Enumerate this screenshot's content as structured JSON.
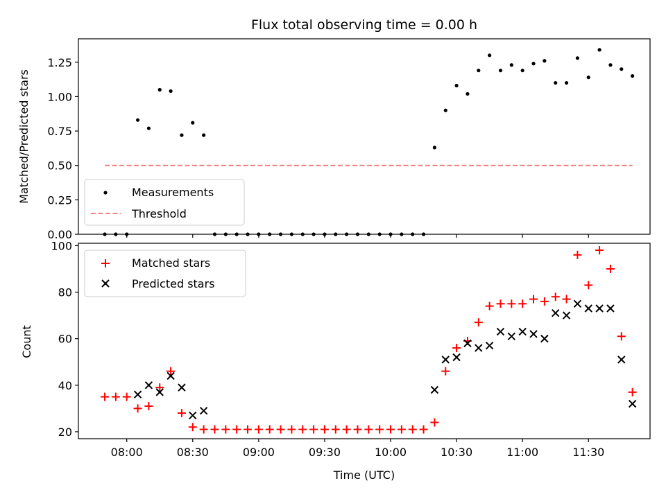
{
  "chart_data": [
    {
      "type": "scatter",
      "title": "Flux total observing time = 0.00 h",
      "xlabel": "",
      "ylabel": "Matched/Predicted stars",
      "ylim": [
        0,
        1.42
      ],
      "yticks": [
        "0.00",
        "0.25",
        "0.50",
        "0.75",
        "1.00",
        "1.25"
      ],
      "legend_position": "lower-left",
      "series": [
        {
          "name": "Measurements",
          "color": "#000000",
          "marker": "dot",
          "points": [
            [
              "07:50",
              0.0
            ],
            [
              "07:55",
              0.0
            ],
            [
              "08:00",
              0.0
            ],
            [
              "08:05",
              0.83
            ],
            [
              "08:10",
              0.77
            ],
            [
              "08:15",
              1.05
            ],
            [
              "08:20",
              1.04
            ],
            [
              "08:25",
              0.72
            ],
            [
              "08:30",
              0.81
            ],
            [
              "08:35",
              0.72
            ],
            [
              "08:40",
              0.0
            ],
            [
              "08:45",
              0.0
            ],
            [
              "08:50",
              0.0
            ],
            [
              "08:55",
              0.0
            ],
            [
              "09:00",
              0.0
            ],
            [
              "09:05",
              0.0
            ],
            [
              "09:10",
              0.0
            ],
            [
              "09:15",
              0.0
            ],
            [
              "09:20",
              0.0
            ],
            [
              "09:25",
              0.0
            ],
            [
              "09:30",
              0.0
            ],
            [
              "09:35",
              0.0
            ],
            [
              "09:40",
              0.0
            ],
            [
              "09:45",
              0.0
            ],
            [
              "09:50",
              0.0
            ],
            [
              "09:55",
              0.0
            ],
            [
              "10:00",
              0.0
            ],
            [
              "10:05",
              0.0
            ],
            [
              "10:10",
              0.0
            ],
            [
              "10:15",
              0.0
            ],
            [
              "10:20",
              0.63
            ],
            [
              "10:25",
              0.9
            ],
            [
              "10:30",
              1.08
            ],
            [
              "10:35",
              1.02
            ],
            [
              "10:40",
              1.19
            ],
            [
              "10:45",
              1.3
            ],
            [
              "10:50",
              1.19
            ],
            [
              "10:55",
              1.23
            ],
            [
              "11:00",
              1.19
            ],
            [
              "11:05",
              1.24
            ],
            [
              "11:10",
              1.26
            ],
            [
              "11:15",
              1.1
            ],
            [
              "11:20",
              1.1
            ],
            [
              "11:25",
              1.28
            ],
            [
              "11:30",
              1.14
            ],
            [
              "11:35",
              1.34
            ],
            [
              "11:40",
              1.23
            ],
            [
              "11:45",
              1.2
            ],
            [
              "11:50",
              1.15
            ]
          ]
        },
        {
          "name": "Threshold",
          "color": "#f08080",
          "marker": "dashed-line",
          "points": [
            [
              "07:50",
              0.5
            ],
            [
              "11:50",
              0.5
            ]
          ]
        }
      ]
    },
    {
      "type": "scatter",
      "title": "",
      "xlabel": "Time (UTC)",
      "ylabel": "Count",
      "ylim": [
        17,
        101
      ],
      "yticks": [
        "20",
        "40",
        "60",
        "80",
        "100"
      ],
      "xticks": [
        "08:00",
        "08:30",
        "09:00",
        "09:30",
        "10:00",
        "10:30",
        "11:00",
        "11:30"
      ],
      "legend_position": "upper-left",
      "series": [
        {
          "name": "Matched stars",
          "color": "#ff0000",
          "marker": "plus",
          "points": [
            [
              "07:50",
              35
            ],
            [
              "07:55",
              35
            ],
            [
              "08:00",
              35
            ],
            [
              "08:05",
              30
            ],
            [
              "08:10",
              31
            ],
            [
              "08:15",
              39
            ],
            [
              "08:20",
              46
            ],
            [
              "08:25",
              28
            ],
            [
              "08:30",
              22
            ],
            [
              "08:35",
              21
            ],
            [
              "08:40",
              21
            ],
            [
              "08:45",
              21
            ],
            [
              "08:50",
              21
            ],
            [
              "08:55",
              21
            ],
            [
              "09:00",
              21
            ],
            [
              "09:05",
              21
            ],
            [
              "09:10",
              21
            ],
            [
              "09:15",
              21
            ],
            [
              "09:20",
              21
            ],
            [
              "09:25",
              21
            ],
            [
              "09:30",
              21
            ],
            [
              "09:35",
              21
            ],
            [
              "09:40",
              21
            ],
            [
              "09:45",
              21
            ],
            [
              "09:50",
              21
            ],
            [
              "09:55",
              21
            ],
            [
              "10:00",
              21
            ],
            [
              "10:05",
              21
            ],
            [
              "10:10",
              21
            ],
            [
              "10:15",
              21
            ],
            [
              "10:20",
              24
            ],
            [
              "10:25",
              46
            ],
            [
              "10:30",
              56
            ],
            [
              "10:35",
              59
            ],
            [
              "10:40",
              67
            ],
            [
              "10:45",
              74
            ],
            [
              "10:50",
              75
            ],
            [
              "10:55",
              75
            ],
            [
              "11:00",
              75
            ],
            [
              "11:05",
              77
            ],
            [
              "11:10",
              76
            ],
            [
              "11:15",
              78
            ],
            [
              "11:20",
              77
            ],
            [
              "11:25",
              96
            ],
            [
              "11:30",
              83
            ],
            [
              "11:35",
              98
            ],
            [
              "11:40",
              90
            ],
            [
              "11:45",
              61
            ],
            [
              "11:50",
              37
            ]
          ]
        },
        {
          "name": "Predicted stars",
          "color": "#000000",
          "marker": "x",
          "points": [
            [
              "08:05",
              36
            ],
            [
              "08:10",
              40
            ],
            [
              "08:15",
              37
            ],
            [
              "08:20",
              44
            ],
            [
              "08:25",
              39
            ],
            [
              "08:30",
              27
            ],
            [
              "08:35",
              29
            ],
            [
              "10:20",
              38
            ],
            [
              "10:25",
              51
            ],
            [
              "10:30",
              52
            ],
            [
              "10:35",
              58
            ],
            [
              "10:40",
              56
            ],
            [
              "10:45",
              57
            ],
            [
              "10:50",
              63
            ],
            [
              "10:55",
              61
            ],
            [
              "11:00",
              63
            ],
            [
              "11:05",
              62
            ],
            [
              "11:10",
              60
            ],
            [
              "11:15",
              71
            ],
            [
              "11:20",
              70
            ],
            [
              "11:25",
              75
            ],
            [
              "11:30",
              73
            ],
            [
              "11:35",
              73
            ],
            [
              "11:40",
              73
            ],
            [
              "11:45",
              51
            ],
            [
              "11:50",
              32
            ]
          ]
        }
      ]
    }
  ]
}
